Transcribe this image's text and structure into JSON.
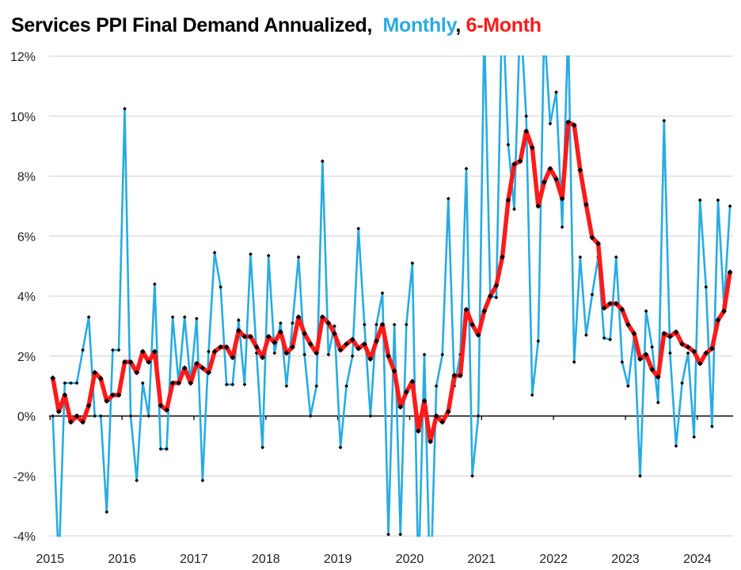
{
  "title": {
    "main": "Services PPI Final Demand Annualized,  ",
    "series1_label": "Monthly",
    "sep": ", ",
    "series2_label": "6-Month"
  },
  "colors": {
    "monthly": "#29abe2",
    "six_month": "#ff1a1a",
    "markers": "#000000",
    "grid": "#d9d9d9"
  },
  "chart_data": {
    "type": "line",
    "title": "Services PPI Final Demand Annualized, Monthly, 6-Month",
    "xlabel": "",
    "ylabel": "",
    "x_start": "2015-01",
    "x_frequency": "monthly",
    "x_ticks": [
      "2015",
      "2016",
      "2017",
      "2018",
      "2019",
      "2020",
      "2021",
      "2022",
      "2023",
      "2024"
    ],
    "y_ticks": [
      "12%",
      "10%",
      "8%",
      "6%",
      "4%",
      "2%",
      "0%",
      "-2%",
      "-4%"
    ],
    "ylim": [
      -4,
      12
    ],
    "y_unit": "%",
    "grid": "horizontal",
    "legend": "in title",
    "series": [
      {
        "name": "Monthly",
        "color": "#29abe2",
        "values": [
          0,
          -5,
          1.1,
          1.1,
          1.1,
          2.2,
          3.3,
          0,
          0,
          -3.2,
          2.2,
          2.2,
          10.25,
          0,
          -2.15,
          1.1,
          0,
          4.4,
          -1.1,
          -1.1,
          3.3,
          1.1,
          3.3,
          1.1,
          3.25,
          -2.15,
          2.15,
          5.45,
          4.3,
          1.05,
          1.05,
          3.2,
          1.05,
          5.4,
          2.1,
          -1.05,
          5.35,
          2.1,
          3.1,
          1.0,
          3.1,
          5.3,
          2.05,
          0,
          1.0,
          8.5,
          2.05,
          3.0,
          -1.05,
          1.0,
          2.0,
          6.25,
          3.05,
          0,
          3.05,
          4.1,
          -3.95,
          3.05,
          -3.95,
          3.05,
          5.1,
          -5.5,
          2.05,
          -6,
          1.0,
          2.05,
          7.25,
          1.0,
          2.05,
          8.25,
          -2.0,
          0,
          13,
          4.0,
          3.95,
          14,
          9.05,
          6.9,
          13.5,
          10.0,
          0.7,
          2.5,
          13,
          9.75,
          10.8,
          6.3,
          13,
          1.8,
          5.3,
          2.7,
          4.05,
          5.3,
          2.6,
          2.55,
          5.3,
          1.8,
          1.0,
          2.7,
          -2.0,
          3.5,
          2.3,
          0.45,
          9.85,
          2.1,
          -1.0,
          1.1,
          2.1,
          -0.7,
          7.2,
          4.3,
          -0.35,
          7.2,
          3.7,
          7.0
        ]
      },
      {
        "name": "6-Month",
        "color": "#ff1a1a",
        "values": [
          1.27,
          0.15,
          0.7,
          -0.2,
          0,
          -0.2,
          0.35,
          1.45,
          1.25,
          0.5,
          0.7,
          0.7,
          1.8,
          1.8,
          1.45,
          2.15,
          1.8,
          2.15,
          0.35,
          0.2,
          1.1,
          1.1,
          1.6,
          1.1,
          1.75,
          1.6,
          1.45,
          2.15,
          2.3,
          2.3,
          1.95,
          2.85,
          2.65,
          2.65,
          2.3,
          1.95,
          2.65,
          2.45,
          2.8,
          2.1,
          2.3,
          3.3,
          2.75,
          2.4,
          2.1,
          3.3,
          3.1,
          2.75,
          2.2,
          2.4,
          2.55,
          2.25,
          2.4,
          1.9,
          2.5,
          3.05,
          2.0,
          1.5,
          0.3,
          0.8,
          1.15,
          -0.5,
          0.5,
          -0.85,
          0,
          -0.2,
          0.15,
          1.35,
          1.35,
          3.55,
          3.05,
          2.7,
          3.5,
          4.0,
          4.35,
          5.3,
          7.2,
          8.4,
          8.5,
          9.5,
          8.95,
          7.0,
          7.8,
          8.25,
          7.9,
          7.25,
          9.8,
          9.7,
          8.2,
          7.05,
          5.95,
          5.75,
          3.6,
          3.75,
          3.75,
          3.55,
          3.05,
          2.75,
          1.9,
          2.05,
          1.55,
          1.3,
          2.75,
          2.65,
          2.8,
          2.4,
          2.3,
          2.15,
          1.75,
          2.1,
          2.25,
          3.2,
          3.5,
          4.8
        ]
      }
    ]
  }
}
